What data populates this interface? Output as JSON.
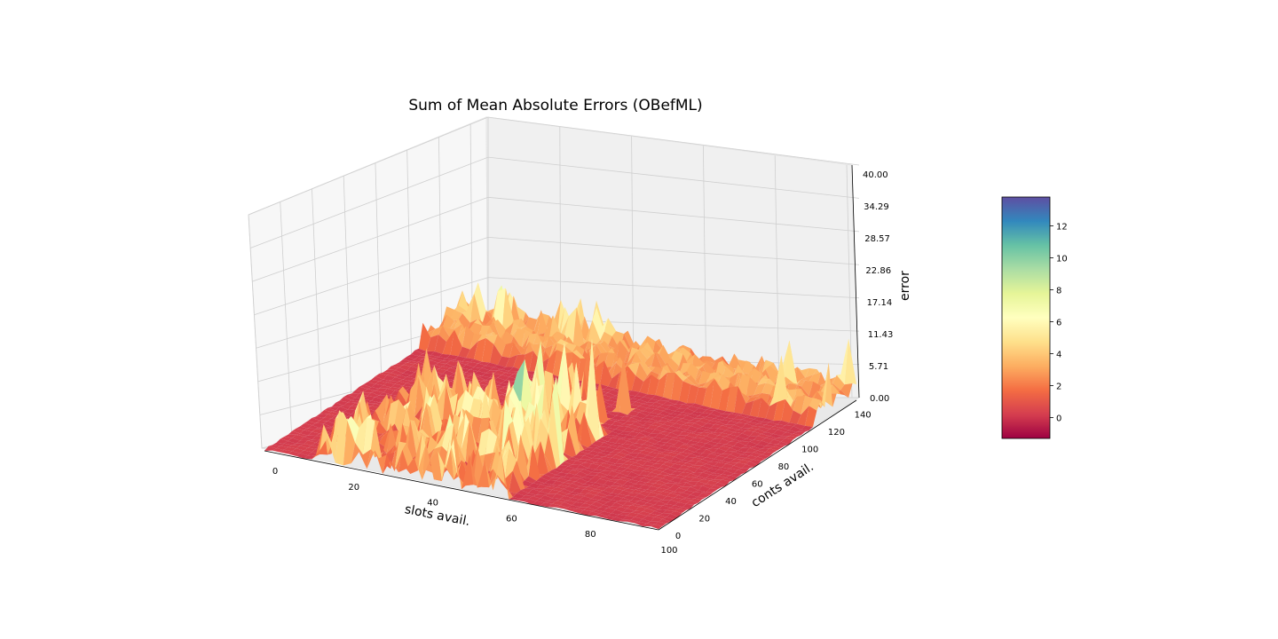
{
  "chart_data": {
    "type": "surface3d",
    "title": "Sum of Mean Absolute Errors (OBefML)",
    "xlabel": "slots avail.",
    "ylabel": "conts avail.",
    "zlabel": "error",
    "x_range": [
      0,
      100
    ],
    "y_range": [
      0,
      150
    ],
    "z_range": [
      0,
      40
    ],
    "x_ticks": [
      "0",
      "20",
      "40",
      "60",
      "80",
      "100"
    ],
    "y_ticks": [
      "0",
      "20",
      "40",
      "60",
      "80",
      "100",
      "120",
      "140"
    ],
    "z_ticks": [
      "0.00",
      "5.71",
      "11.43",
      "17.14",
      "22.86",
      "28.57",
      "34.29",
      "40.00"
    ],
    "grid": true,
    "colormap": "Spectral",
    "colorbar": {
      "range": [
        -1.3,
        13.8
      ],
      "ticks": [
        "0",
        "2",
        "4",
        "6",
        "8",
        "10",
        "12"
      ]
    },
    "surface_description": "mostly near-zero error with a band of peaks (values up to ~13) along slots avail. 15-60 and a raised ridge near conts avail. 120-150",
    "background_colors": {
      "pane": "#f2f2f2",
      "grid": "#cfcfcf"
    }
  }
}
